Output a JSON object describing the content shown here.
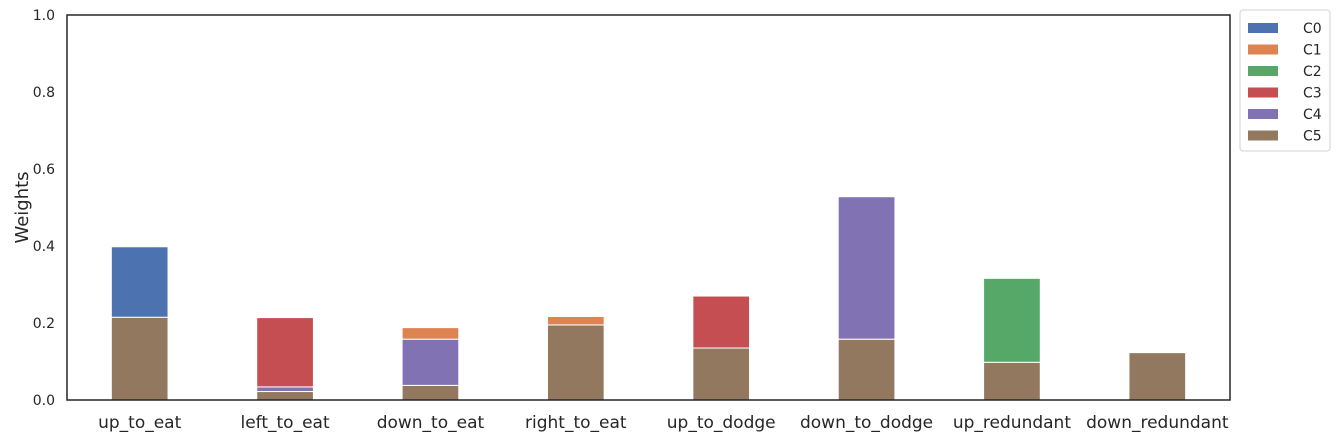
{
  "chart_data": {
    "type": "bar",
    "stacked": true,
    "title": "",
    "xlabel": "",
    "ylabel": "Weights",
    "ylim": [
      0,
      1
    ],
    "yticks": [
      "0.0",
      "0.2",
      "0.4",
      "0.6",
      "0.8",
      "1.0"
    ],
    "grid": false,
    "legend_position": "outside-top-right",
    "categories": [
      "up_to_eat",
      "left_to_eat",
      "down_to_eat",
      "right_to_eat",
      "up_to_dodge",
      "down_to_dodge",
      "up_redundant",
      "down_redundant"
    ],
    "series": [
      {
        "name": "C5",
        "color": "#937860",
        "values": [
          0.215,
          0.022,
          0.038,
          0.195,
          0.135,
          0.158,
          0.098,
          0.123
        ]
      },
      {
        "name": "C4",
        "color": "#8172b3",
        "values": [
          0.0,
          0.012,
          0.12,
          0.0,
          0.0,
          0.37,
          0.0,
          0.0
        ]
      },
      {
        "name": "C3",
        "color": "#c44e52",
        "values": [
          0.0,
          0.18,
          0.0,
          0.0,
          0.135,
          0.0,
          0.0,
          0.0
        ]
      },
      {
        "name": "C2",
        "color": "#55a868",
        "values": [
          0.0,
          0.0,
          0.0,
          0.0,
          0.0,
          0.0,
          0.218,
          0.0
        ]
      },
      {
        "name": "C1",
        "color": "#dd8452",
        "values": [
          0.0,
          0.0,
          0.03,
          0.022,
          0.0,
          0.0,
          0.0,
          0.0
        ]
      },
      {
        "name": "C0",
        "color": "#4c72b0",
        "values": [
          0.183,
          0.0,
          0.0,
          0.0,
          0.0,
          0.0,
          0.0,
          0.0
        ]
      }
    ],
    "legend_order": [
      "C0",
      "C1",
      "C2",
      "C3",
      "C4",
      "C5"
    ]
  }
}
